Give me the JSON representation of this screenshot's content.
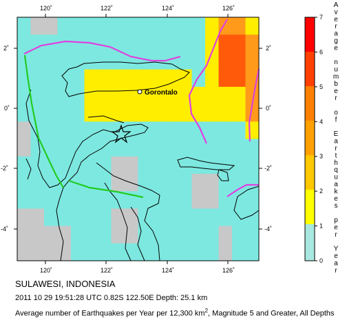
{
  "map": {
    "lon_ticks": [
      "120˚",
      "122˚",
      "124˚",
      "126˚"
    ],
    "lat_ticks": [
      "2˚",
      "0˚",
      "-2˚",
      "-4˚"
    ],
    "city_label": "Gorontalo",
    "grid_levels": [
      [
        1,
        0,
        0,
        1,
        1,
        1,
        1,
        1,
        1,
        1,
        1,
        1,
        1,
        1,
        2,
        3,
        3,
        2
      ],
      [
        1,
        1,
        1,
        1,
        1,
        1,
        1,
        1,
        1,
        1,
        1,
        1,
        1,
        1,
        2,
        4,
        4,
        3
      ],
      [
        1,
        1,
        1,
        1,
        1,
        1,
        1,
        1,
        1,
        1,
        1,
        1,
        1,
        1,
        2,
        4,
        4,
        3
      ],
      [
        1,
        1,
        1,
        1,
        1,
        2,
        2,
        2,
        2,
        2,
        2,
        2,
        2,
        1,
        2,
        4,
        4,
        3
      ],
      [
        1,
        1,
        1,
        1,
        1,
        2,
        2,
        2,
        2,
        2,
        2,
        2,
        2,
        2,
        2,
        2,
        2,
        3
      ],
      [
        1,
        1,
        1,
        1,
        1,
        2,
        2,
        2,
        2,
        2,
        2,
        2,
        2,
        2,
        2,
        2,
        2,
        3
      ],
      [
        0,
        1,
        1,
        1,
        1,
        1,
        1,
        1,
        1,
        1,
        1,
        1,
        1,
        1,
        1,
        1,
        1,
        2
      ],
      [
        0,
        1,
        1,
        1,
        1,
        1,
        1,
        1,
        1,
        1,
        1,
        1,
        1,
        1,
        1,
        1,
        1,
        1
      ],
      [
        1,
        1,
        1,
        1,
        1,
        1,
        1,
        0,
        0,
        1,
        1,
        1,
        1,
        1,
        1,
        1,
        1,
        1
      ],
      [
        1,
        1,
        1,
        1,
        1,
        1,
        1,
        0,
        0,
        1,
        1,
        1,
        1,
        0,
        0,
        1,
        1,
        1
      ],
      [
        1,
        1,
        1,
        1,
        1,
        1,
        1,
        1,
        1,
        1,
        1,
        1,
        1,
        0,
        0,
        1,
        1,
        1
      ],
      [
        0,
        0,
        1,
        1,
        1,
        1,
        1,
        0,
        0,
        1,
        1,
        1,
        1,
        1,
        1,
        1,
        1,
        1
      ],
      [
        0,
        0,
        0,
        0,
        1,
        1,
        1,
        0,
        0,
        1,
        1,
        1,
        1,
        1,
        1,
        0,
        1,
        1
      ],
      [
        0,
        0,
        0,
        0,
        1,
        1,
        1,
        1,
        1,
        1,
        1,
        1,
        1,
        1,
        1,
        0,
        1,
        1
      ]
    ],
    "level_colors": [
      "#c8c8c8",
      "#7de8e0",
      "#ffee00",
      "#ff9a1a",
      "#ff5a0a"
    ]
  },
  "colorbar": {
    "ticks": [
      "0",
      "1",
      "2",
      "3",
      "4",
      "5",
      "6",
      "7"
    ],
    "title_chars": [
      "A",
      "v",
      "e",
      "r",
      "a",
      "g",
      "e",
      "",
      "n",
      "u",
      "m",
      "b",
      "e",
      "r",
      "",
      "o",
      "f",
      "",
      "E",
      "a",
      "r",
      "t",
      "h",
      "q",
      "u",
      "a",
      "k",
      "e",
      "s",
      "",
      "p",
      "e",
      "r",
      "",
      "Y",
      "e",
      "a",
      "r"
    ]
  },
  "caption": {
    "region": "SULAWESI, INDONESIA",
    "event": "2011 10 29 19:51:28 UTC 0.82S 122.50E Depth: 25.1 km",
    "legend_prefix": "Average number of Earthquakes per Year per 12,300 km",
    "legend_sup": "2",
    "legend_suffix": ", Magnitude 5 and Greater, All Depths"
  }
}
